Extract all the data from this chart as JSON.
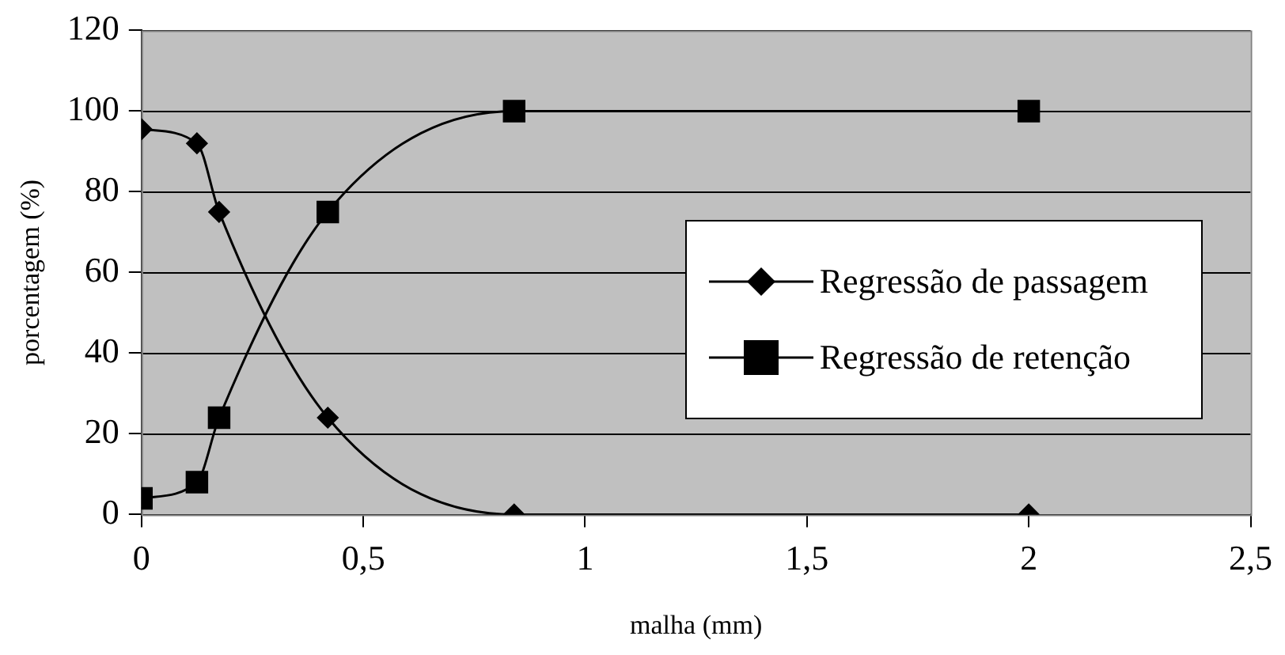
{
  "chart_data": {
    "type": "line",
    "xlabel": "malha (mm)",
    "ylabel": "porcentagem (%)",
    "xlim": [
      0,
      2.5
    ],
    "xticks": [
      {
        "value": 0,
        "label": "0"
      },
      {
        "value": 0.5,
        "label": "0,5"
      },
      {
        "value": 1,
        "label": "1"
      },
      {
        "value": 1.5,
        "label": "1,5"
      },
      {
        "value": 2,
        "label": "2"
      },
      {
        "value": 2.5,
        "label": "2,5"
      }
    ],
    "ylim": [
      0,
      120
    ],
    "yticks": [
      0,
      20,
      40,
      60,
      80,
      100,
      120
    ],
    "grid": "y",
    "legend": "right",
    "series": [
      {
        "name": "Regressão de passagem",
        "color": "#000000",
        "marker": "diamond",
        "x": [
          0,
          0.125,
          0.175,
          0.42,
          0.84,
          2
        ],
        "values": [
          95.5,
          92,
          75,
          24,
          0,
          0
        ]
      },
      {
        "name": "Regressão de retenção",
        "color": "#000000",
        "marker": "square",
        "x": [
          0,
          0.125,
          0.175,
          0.42,
          0.84,
          2
        ],
        "values": [
          4,
          8,
          24,
          75,
          100,
          100
        ]
      }
    ]
  }
}
